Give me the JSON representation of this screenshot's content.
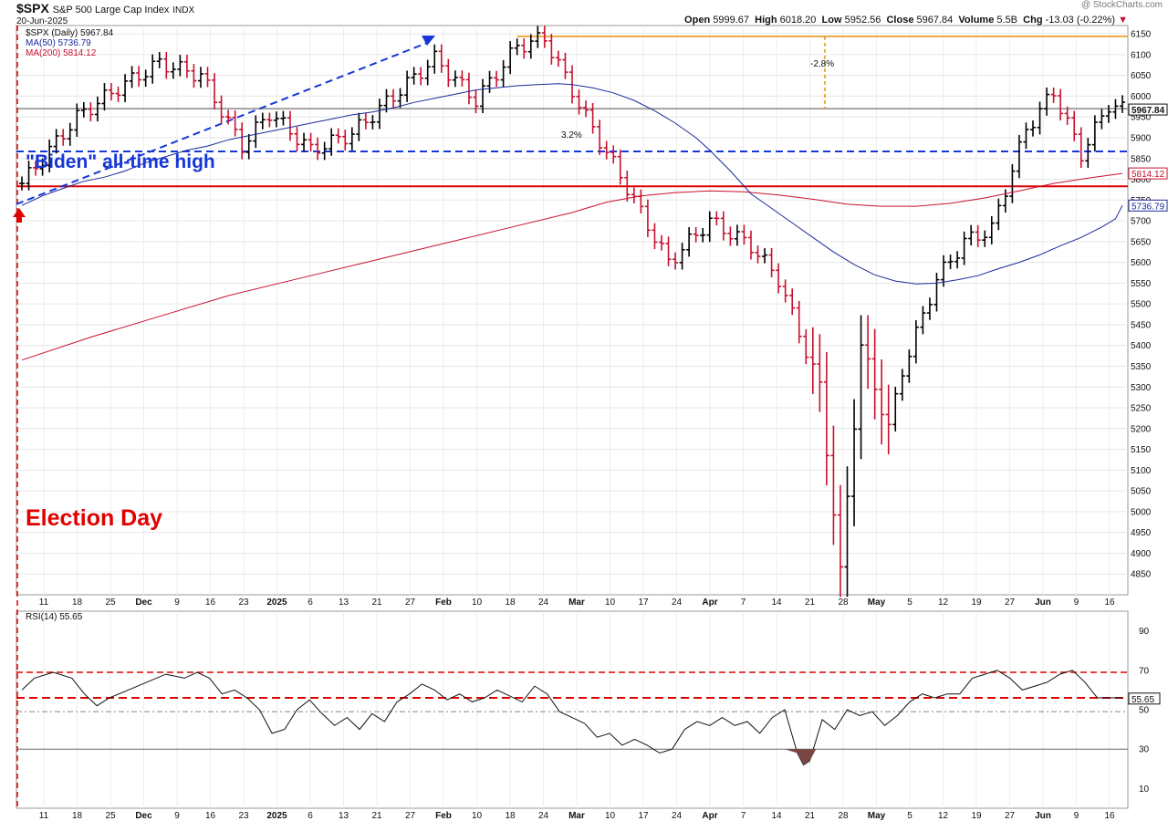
{
  "header": {
    "symbol": "$SPX",
    "name": "S&P 500 Large Cap Index",
    "exchange": "INDX",
    "date": "20-Jun-2025",
    "watermark": "@ StockCharts.com",
    "open_label": "Open",
    "open": "5999.67",
    "high_label": "High",
    "high": "6018.20",
    "low_label": "Low",
    "low": "5952.56",
    "close_label": "Close",
    "close": "5967.84",
    "volume_label": "Volume",
    "volume": "5.5B",
    "chg_label": "Chg",
    "chg": "-13.03 (-0.22%)"
  },
  "legend": {
    "price": "$SPX (Daily) 5967.84",
    "ma50": "MA(50) 5736.79",
    "ma200": "MA(200) 5814.12"
  },
  "annotations": {
    "biden_high": "\"Biden\" all-time high",
    "election_day": "Election Day",
    "pct_drop": "-2.8%",
    "pct_small": "3.2%"
  },
  "rsi_label": "RSI(14) 55.65",
  "colors": {
    "up": "#000000",
    "down": "#c8102e",
    "ma50": "#1a2a9a",
    "ma200": "#c8102e",
    "blue_dash": "#1537d8",
    "red_line": "#e00000",
    "orange": "#e8920a",
    "annot_red": "#e00000"
  },
  "chart_data": [
    {
      "type": "ohlc",
      "ylim": [
        4800,
        6170
      ],
      "yticks": [
        4850,
        4900,
        4950,
        5000,
        5050,
        5100,
        5150,
        5200,
        5250,
        5300,
        5350,
        5400,
        5450,
        5500,
        5550,
        5600,
        5650,
        5700,
        5750,
        5800,
        5850,
        5900,
        5950,
        6000,
        6050,
        6100,
        6150
      ],
      "x_labels": [
        "11",
        "18",
        "25",
        "Dec",
        "9",
        "16",
        "23",
        "2025",
        "6",
        "13",
        "21",
        "27",
        "Feb",
        "10",
        "18",
        "24",
        "Mar",
        "10",
        "17",
        "24",
        "Apr",
        "7",
        "14",
        "21",
        "28",
        "May",
        "5",
        "12",
        "19",
        "27",
        "Jun",
        "9",
        "16"
      ],
      "price_tags": [
        "5967.84",
        "5814.12",
        "5736.79"
      ],
      "levels": {
        "biden_high": 5867,
        "red_support": 5783,
        "gray_line": 5970,
        "peak": 6144
      },
      "ma50": [
        [
          0,
          5737
        ],
        [
          3,
          5760
        ],
        [
          6,
          5778
        ],
        [
          9,
          5795
        ],
        [
          12,
          5805
        ],
        [
          15,
          5820
        ],
        [
          18,
          5840
        ],
        [
          21,
          5855
        ],
        [
          24,
          5870
        ],
        [
          27,
          5880
        ],
        [
          30,
          5895
        ],
        [
          33,
          5905
        ],
        [
          36,
          5915
        ],
        [
          39,
          5925
        ],
        [
          42,
          5935
        ],
        [
          45,
          5945
        ],
        [
          48,
          5955
        ],
        [
          51,
          5962
        ],
        [
          54,
          5972
        ],
        [
          57,
          5985
        ],
        [
          60,
          5995
        ],
        [
          63,
          6005
        ],
        [
          66,
          6015
        ],
        [
          69,
          6020
        ],
        [
          72,
          6025
        ],
        [
          75,
          6028
        ],
        [
          78,
          6030
        ],
        [
          80,
          6028
        ],
        [
          83,
          6020
        ],
        [
          86,
          6008
        ],
        [
          89,
          5990
        ],
        [
          92,
          5965
        ],
        [
          95,
          5935
        ],
        [
          98,
          5900
        ],
        [
          100,
          5870
        ],
        [
          103,
          5820
        ],
        [
          106,
          5765
        ],
        [
          109,
          5730
        ],
        [
          112,
          5695
        ],
        [
          115,
          5660
        ],
        [
          118,
          5625
        ],
        [
          121,
          5595
        ],
        [
          124,
          5570
        ],
        [
          127,
          5555
        ],
        [
          130,
          5548
        ],
        [
          133,
          5550
        ],
        [
          136,
          5558
        ],
        [
          139,
          5568
        ],
        [
          142,
          5585
        ],
        [
          145,
          5600
        ],
        [
          148,
          5618
        ],
        [
          151,
          5640
        ],
        [
          154,
          5660
        ],
        [
          157,
          5685
        ],
        [
          159,
          5705
        ],
        [
          160,
          5737
        ]
      ],
      "ma200": [
        [
          0,
          5365
        ],
        [
          10,
          5420
        ],
        [
          20,
          5470
        ],
        [
          30,
          5520
        ],
        [
          40,
          5560
        ],
        [
          50,
          5600
        ],
        [
          60,
          5640
        ],
        [
          70,
          5680
        ],
        [
          80,
          5720
        ],
        [
          85,
          5745
        ],
        [
          90,
          5760
        ],
        [
          95,
          5768
        ],
        [
          100,
          5772
        ],
        [
          105,
          5770
        ],
        [
          110,
          5762
        ],
        [
          115,
          5752
        ],
        [
          120,
          5740
        ],
        [
          125,
          5735
        ],
        [
          130,
          5735
        ],
        [
          135,
          5742
        ],
        [
          140,
          5755
        ],
        [
          145,
          5772
        ],
        [
          150,
          5790
        ],
        [
          155,
          5803
        ],
        [
          160,
          5814
        ]
      ]
    },
    {
      "type": "line",
      "name": "RSI(14)",
      "ylim": [
        0,
        100
      ],
      "yticks": [
        10,
        30,
        50,
        70,
        90
      ],
      "levels": {
        "red_upper": 69,
        "red_lower": 56,
        "gray_mid": 49,
        "gray_low": 30
      },
      "value_tag": "55.65",
      "values": [
        [
          0,
          60
        ],
        [
          2,
          66
        ],
        [
          5,
          69
        ],
        [
          8,
          66
        ],
        [
          10,
          58
        ],
        [
          12,
          52
        ],
        [
          14,
          56
        ],
        [
          17,
          60
        ],
        [
          20,
          64
        ],
        [
          23,
          68
        ],
        [
          26,
          66
        ],
        [
          28,
          69
        ],
        [
          30,
          66
        ],
        [
          32,
          58
        ],
        [
          34,
          60
        ],
        [
          36,
          56
        ],
        [
          38,
          50
        ],
        [
          40,
          38
        ],
        [
          42,
          40
        ],
        [
          44,
          50
        ],
        [
          46,
          55
        ],
        [
          48,
          48
        ],
        [
          50,
          42
        ],
        [
          52,
          46
        ],
        [
          54,
          40
        ],
        [
          56,
          48
        ],
        [
          58,
          44
        ],
        [
          60,
          54
        ],
        [
          62,
          58
        ],
        [
          64,
          63
        ],
        [
          66,
          60
        ],
        [
          68,
          55
        ],
        [
          70,
          58
        ],
        [
          72,
          54
        ],
        [
          74,
          56
        ],
        [
          76,
          60
        ],
        [
          78,
          57
        ],
        [
          80,
          54
        ],
        [
          82,
          62
        ],
        [
          84,
          58
        ],
        [
          86,
          49
        ],
        [
          88,
          46
        ],
        [
          90,
          43
        ],
        [
          92,
          36
        ],
        [
          94,
          38
        ],
        [
          96,
          32
        ],
        [
          98,
          35
        ],
        [
          100,
          32
        ],
        [
          102,
          28
        ],
        [
          104,
          30
        ],
        [
          106,
          40
        ],
        [
          108,
          44
        ],
        [
          110,
          42
        ],
        [
          112,
          46
        ],
        [
          114,
          42
        ],
        [
          116,
          44
        ],
        [
          118,
          38
        ],
        [
          120,
          46
        ],
        [
          122,
          50
        ],
        [
          124,
          28
        ],
        [
          125,
          22
        ],
        [
          126,
          24
        ],
        [
          128,
          45
        ],
        [
          130,
          40
        ],
        [
          132,
          50
        ],
        [
          134,
          47
        ],
        [
          136,
          49
        ],
        [
          138,
          42
        ],
        [
          140,
          47
        ],
        [
          142,
          54
        ],
        [
          144,
          58
        ],
        [
          146,
          56
        ],
        [
          148,
          58
        ],
        [
          150,
          58
        ],
        [
          152,
          66
        ],
        [
          154,
          68
        ],
        [
          156,
          70
        ],
        [
          158,
          66
        ],
        [
          160,
          60
        ],
        [
          162,
          62
        ],
        [
          164,
          64
        ],
        [
          166,
          68
        ],
        [
          168,
          70
        ],
        [
          170,
          64
        ],
        [
          172,
          56
        ],
        [
          174,
          56
        ],
        [
          176,
          56
        ]
      ]
    }
  ]
}
